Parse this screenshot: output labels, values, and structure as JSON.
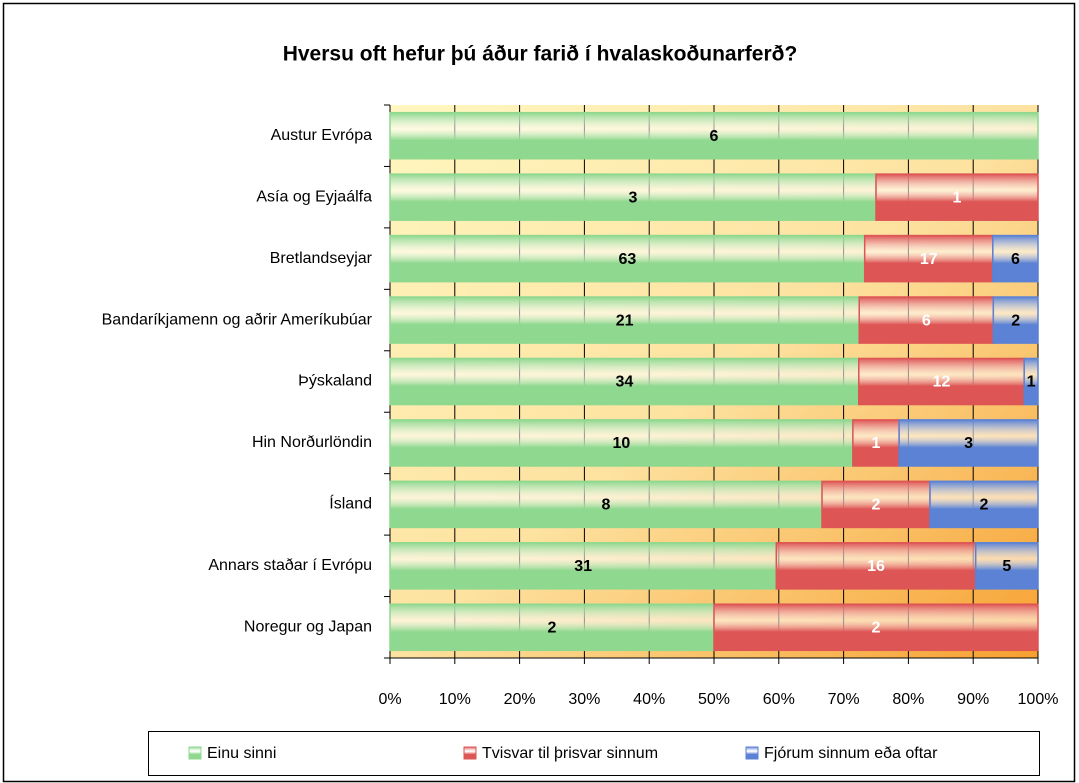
{
  "chart_data": {
    "type": "bar",
    "orientation": "horizontal",
    "stacking": "percent",
    "title": "Hversu oft hefur þú áður farið í hvalaskoðunarferð?",
    "categories": [
      "Austur Evrópa",
      "Asía og Eyjaálfa",
      "Bretlandseyjar",
      "Bandaríkjamenn og aðrir Ameríkubúar",
      "Þýskaland",
      "Hin Norðurlöndin",
      "Ísland",
      "Annars staðar í Evrópu",
      "Noregur og Japan"
    ],
    "series": [
      {
        "name": "Einu sinni",
        "color": "#8fd88f",
        "label_color": "#000000",
        "values": [
          6,
          3,
          63,
          21,
          34,
          10,
          8,
          31,
          2
        ]
      },
      {
        "name": "Tvisvar til þrisvar sinnum",
        "color": "#dd5555",
        "label_color": "#ffffff",
        "values": [
          null,
          1,
          17,
          6,
          12,
          1,
          2,
          16,
          2
        ]
      },
      {
        "name": "Fjórum sinnum eða oftar",
        "color": "#5b82d4",
        "label_color": "#000000",
        "values": [
          null,
          null,
          6,
          2,
          1,
          3,
          2,
          5,
          null
        ]
      }
    ],
    "xlim": [
      0,
      100
    ],
    "xticks": [
      {
        "value": 0,
        "label": "0%"
      },
      {
        "value": 10,
        "label": "10%"
      },
      {
        "value": 20,
        "label": "20%"
      },
      {
        "value": 30,
        "label": "30%"
      },
      {
        "value": 40,
        "label": "40%"
      },
      {
        "value": 50,
        "label": "50%"
      },
      {
        "value": 60,
        "label": "60%"
      },
      {
        "value": 70,
        "label": "70%"
      },
      {
        "value": 80,
        "label": "80%"
      },
      {
        "value": 90,
        "label": "90%"
      },
      {
        "value": 100,
        "label": "100%"
      }
    ],
    "grid": true,
    "legend": "bottom"
  }
}
